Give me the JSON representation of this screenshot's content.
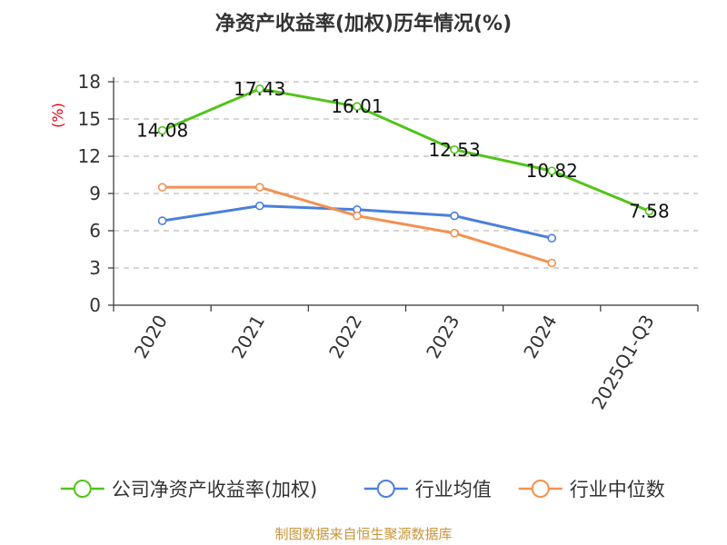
{
  "chart_data": {
    "type": "line",
    "title": "净资产收益率(加权)历年情况(%)",
    "ylabel": "(%)",
    "xlabel": "",
    "categories": [
      "2020",
      "2021",
      "2022",
      "2023",
      "2024",
      "2025Q1-Q3"
    ],
    "ylim": [
      0,
      18
    ],
    "yticks": [
      0,
      3,
      6,
      9,
      12,
      15,
      18
    ],
    "grid": true,
    "legend_position": "bottom",
    "series": [
      {
        "name": "公司净资产收益率(加权)",
        "color": "#52c41a",
        "values": [
          14.08,
          17.43,
          16.01,
          12.53,
          10.82,
          7.58
        ],
        "labels": [
          "14.08",
          "17.43",
          "16.01",
          "12.53",
          "10.82",
          "7.58"
        ]
      },
      {
        "name": "行业均值",
        "color": "#4a7fdc",
        "values": [
          6.8,
          8.0,
          7.7,
          7.2,
          5.4,
          null
        ]
      },
      {
        "name": "行业中位数",
        "color": "#f39152",
        "values": [
          9.5,
          9.5,
          7.2,
          5.8,
          3.4,
          null
        ]
      }
    ],
    "source": "制图数据来自恒生聚源数据库"
  }
}
